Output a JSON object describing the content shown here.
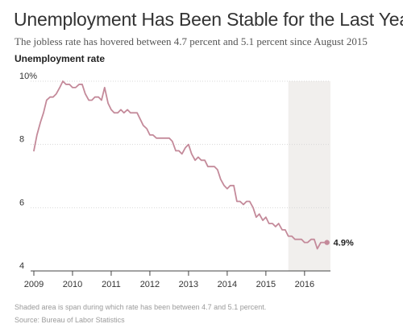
{
  "chart_data": {
    "type": "line",
    "title": "Unemployment Has Been Stable for the Last Year",
    "subtitle": "The jobless rate has hovered between 4.7 percent and 5.1 percent since August 2015",
    "ylabel": "Unemployment rate",
    "xlabel": "",
    "ylim": [
      4,
      10
    ],
    "xlim": [
      2009,
      2016.67
    ],
    "yticks": [
      4,
      6,
      8,
      10
    ],
    "ytick_labels": [
      "4",
      "6",
      "8",
      "10%"
    ],
    "xticks": [
      2009,
      2010,
      2011,
      2012,
      2013,
      2014,
      2015,
      2016
    ],
    "xtick_labels": [
      "2009",
      "2010",
      "2011",
      "2012",
      "2013",
      "2014",
      "2015",
      "2016"
    ],
    "grid": "horizontal",
    "shaded_span": [
      2015.58,
      2016.67
    ],
    "end_label": "4.9%",
    "line_color": "#c48a9a",
    "shade_color": "#f1efed",
    "note": "Shaded area is span during which rate has been between 4.7 and 5.1 percent.",
    "source": "Source: Bureau of Labor Statistics",
    "series": [
      {
        "x": [
          2009.0,
          2009.08,
          2009.17,
          2009.25,
          2009.33,
          2009.42,
          2009.5,
          2009.58,
          2009.67,
          2009.75,
          2009.83,
          2009.92,
          2010.0,
          2010.08,
          2010.17,
          2010.25,
          2010.33,
          2010.42,
          2010.5,
          2010.58,
          2010.67,
          2010.75,
          2010.83,
          2010.92,
          2011.0,
          2011.08,
          2011.17,
          2011.25,
          2011.33,
          2011.42,
          2011.5,
          2011.58,
          2011.67,
          2011.75,
          2011.83,
          2011.92,
          2012.0,
          2012.08,
          2012.17,
          2012.25,
          2012.33,
          2012.42,
          2012.5,
          2012.58,
          2012.67,
          2012.75,
          2012.83,
          2012.92,
          2013.0,
          2013.08,
          2013.17,
          2013.25,
          2013.33,
          2013.42,
          2013.5,
          2013.58,
          2013.67,
          2013.75,
          2013.83,
          2013.92,
          2014.0,
          2014.08,
          2014.17,
          2014.25,
          2014.33,
          2014.42,
          2014.5,
          2014.58,
          2014.67,
          2014.75,
          2014.83,
          2014.92,
          2015.0,
          2015.08,
          2015.17,
          2015.25,
          2015.33,
          2015.42,
          2015.5,
          2015.58,
          2015.67,
          2015.75,
          2015.83,
          2015.92,
          2016.0,
          2016.08,
          2016.17,
          2016.25,
          2016.33,
          2016.42,
          2016.5,
          2016.58
        ],
        "values": [
          7.8,
          8.3,
          8.7,
          9.0,
          9.4,
          9.5,
          9.5,
          9.6,
          9.8,
          10.0,
          9.9,
          9.9,
          9.8,
          9.8,
          9.9,
          9.9,
          9.6,
          9.4,
          9.4,
          9.5,
          9.5,
          9.4,
          9.8,
          9.3,
          9.1,
          9.0,
          9.0,
          9.1,
          9.0,
          9.1,
          9.0,
          9.0,
          9.0,
          8.8,
          8.6,
          8.5,
          8.3,
          8.3,
          8.2,
          8.2,
          8.2,
          8.2,
          8.2,
          8.1,
          7.8,
          7.8,
          7.7,
          7.9,
          8.0,
          7.7,
          7.5,
          7.6,
          7.5,
          7.5,
          7.3,
          7.3,
          7.3,
          7.2,
          6.9,
          6.7,
          6.6,
          6.7,
          6.7,
          6.2,
          6.2,
          6.1,
          6.2,
          6.2,
          6.0,
          5.7,
          5.8,
          5.6,
          5.7,
          5.5,
          5.5,
          5.4,
          5.5,
          5.3,
          5.3,
          5.1,
          5.1,
          5.0,
          5.0,
          5.0,
          4.9,
          4.9,
          5.0,
          5.0,
          4.7,
          4.9,
          4.9,
          4.9
        ]
      }
    ]
  }
}
